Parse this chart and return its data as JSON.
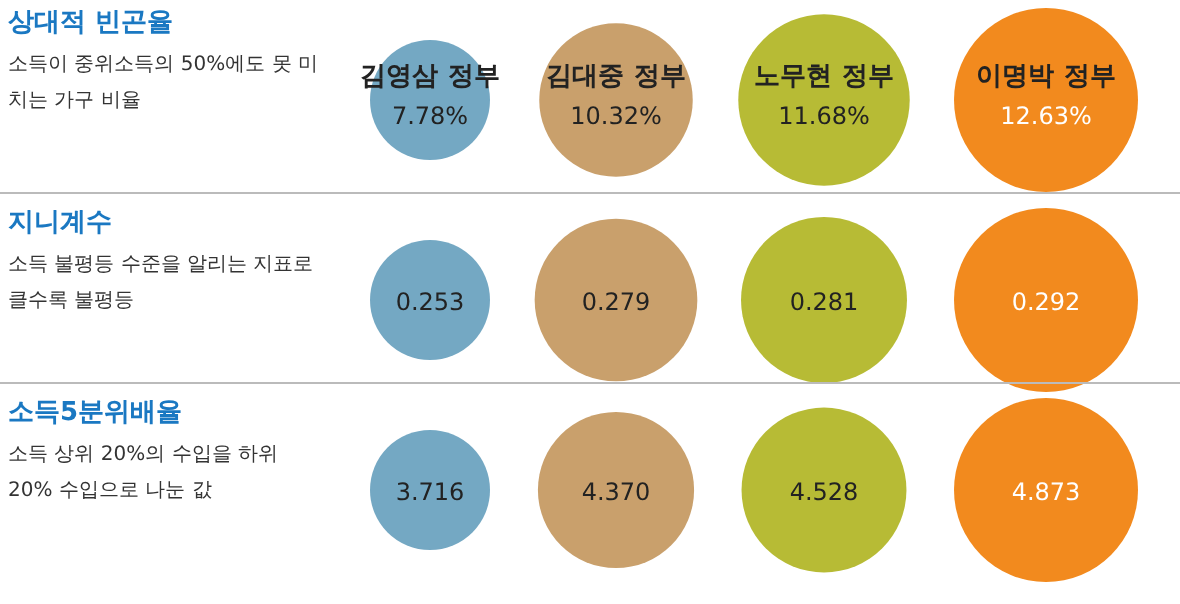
{
  "chart_data": [
    {
      "type": "other",
      "title": "상대적 빈곤율",
      "subtitle": "소득이 중위소득의 50%에도 못 미치는 가구 비율",
      "categories": [
        "김영삼 정부",
        "김대중 정부",
        "노무현 정부",
        "이명박 정부"
      ],
      "values": [
        7.78,
        10.32,
        11.68,
        12.63
      ],
      "value_labels": [
        "7.78%",
        "10.32%",
        "11.68%",
        "12.63%"
      ],
      "colors": [
        "#74a8c3",
        "#c9a06c",
        "#b7bb35",
        "#f28a1e"
      ]
    },
    {
      "type": "other",
      "title": "지니계수",
      "subtitle": "소득 불평등 수준을 알리는 지표로 클수록 불평등",
      "categories": [
        null,
        null,
        null,
        null
      ],
      "values": [
        0.253,
        0.279,
        0.281,
        0.292
      ],
      "value_labels": [
        "0.253",
        "0.279",
        "0.281",
        "0.292"
      ],
      "colors": [
        "#74a8c3",
        "#c9a06c",
        "#b7bb35",
        "#f28a1e"
      ]
    },
    {
      "type": "other",
      "title": "소득5분위배율",
      "subtitle": "소득 상위 20%의 수입을 하위 20% 수입으로 나눈 값",
      "categories": [
        null,
        null,
        null,
        null
      ],
      "values": [
        3.716,
        4.37,
        4.528,
        4.873
      ],
      "value_labels": [
        "3.716",
        "4.370",
        "4.528",
        "4.873"
      ],
      "colors": [
        "#74a8c3",
        "#c9a06c",
        "#b7bb35",
        "#f28a1e"
      ]
    }
  ]
}
